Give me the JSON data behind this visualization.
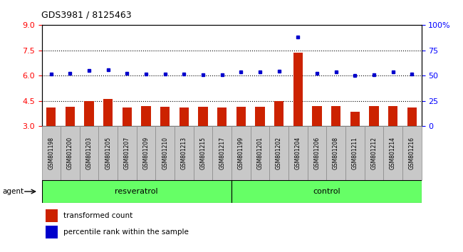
{
  "title": "GDS3981 / 8125463",
  "categories": [
    "GSM801198",
    "GSM801200",
    "GSM801203",
    "GSM801205",
    "GSM801207",
    "GSM801209",
    "GSM801210",
    "GSM801213",
    "GSM801215",
    "GSM801217",
    "GSM801199",
    "GSM801201",
    "GSM801202",
    "GSM801204",
    "GSM801206",
    "GSM801208",
    "GSM801211",
    "GSM801212",
    "GSM801214",
    "GSM801216"
  ],
  "bar_values": [
    4.1,
    4.15,
    4.5,
    4.6,
    4.1,
    4.2,
    4.15,
    4.1,
    4.15,
    4.1,
    4.15,
    4.15,
    4.5,
    7.35,
    4.2,
    4.2,
    3.85,
    4.2,
    4.2,
    4.1
  ],
  "dot_values": [
    6.1,
    6.15,
    6.3,
    6.35,
    6.15,
    6.1,
    6.1,
    6.1,
    6.05,
    6.05,
    6.2,
    6.2,
    6.25,
    8.3,
    6.15,
    6.2,
    6.0,
    6.05,
    6.2,
    6.1
  ],
  "bar_color": "#cc2200",
  "dot_color": "#0000cc",
  "ylim_left": [
    3,
    9
  ],
  "ylim_right": [
    0,
    100
  ],
  "yticks_left": [
    3,
    4.5,
    6,
    7.5,
    9
  ],
  "yticks_right": [
    0,
    25,
    50,
    75,
    100
  ],
  "hlines": [
    4.5,
    6.0,
    7.5
  ],
  "group1_label": "resveratrol",
  "group2_label": "control",
  "group1_count": 10,
  "group2_count": 10,
  "agent_label": "agent",
  "legend_bar": "transformed count",
  "legend_dot": "percentile rank within the sample",
  "bar_bottom": 3,
  "group_bar_color": "#66ff66",
  "tick_bg_color": "#c8c8c8",
  "plot_bg": "#ffffff"
}
